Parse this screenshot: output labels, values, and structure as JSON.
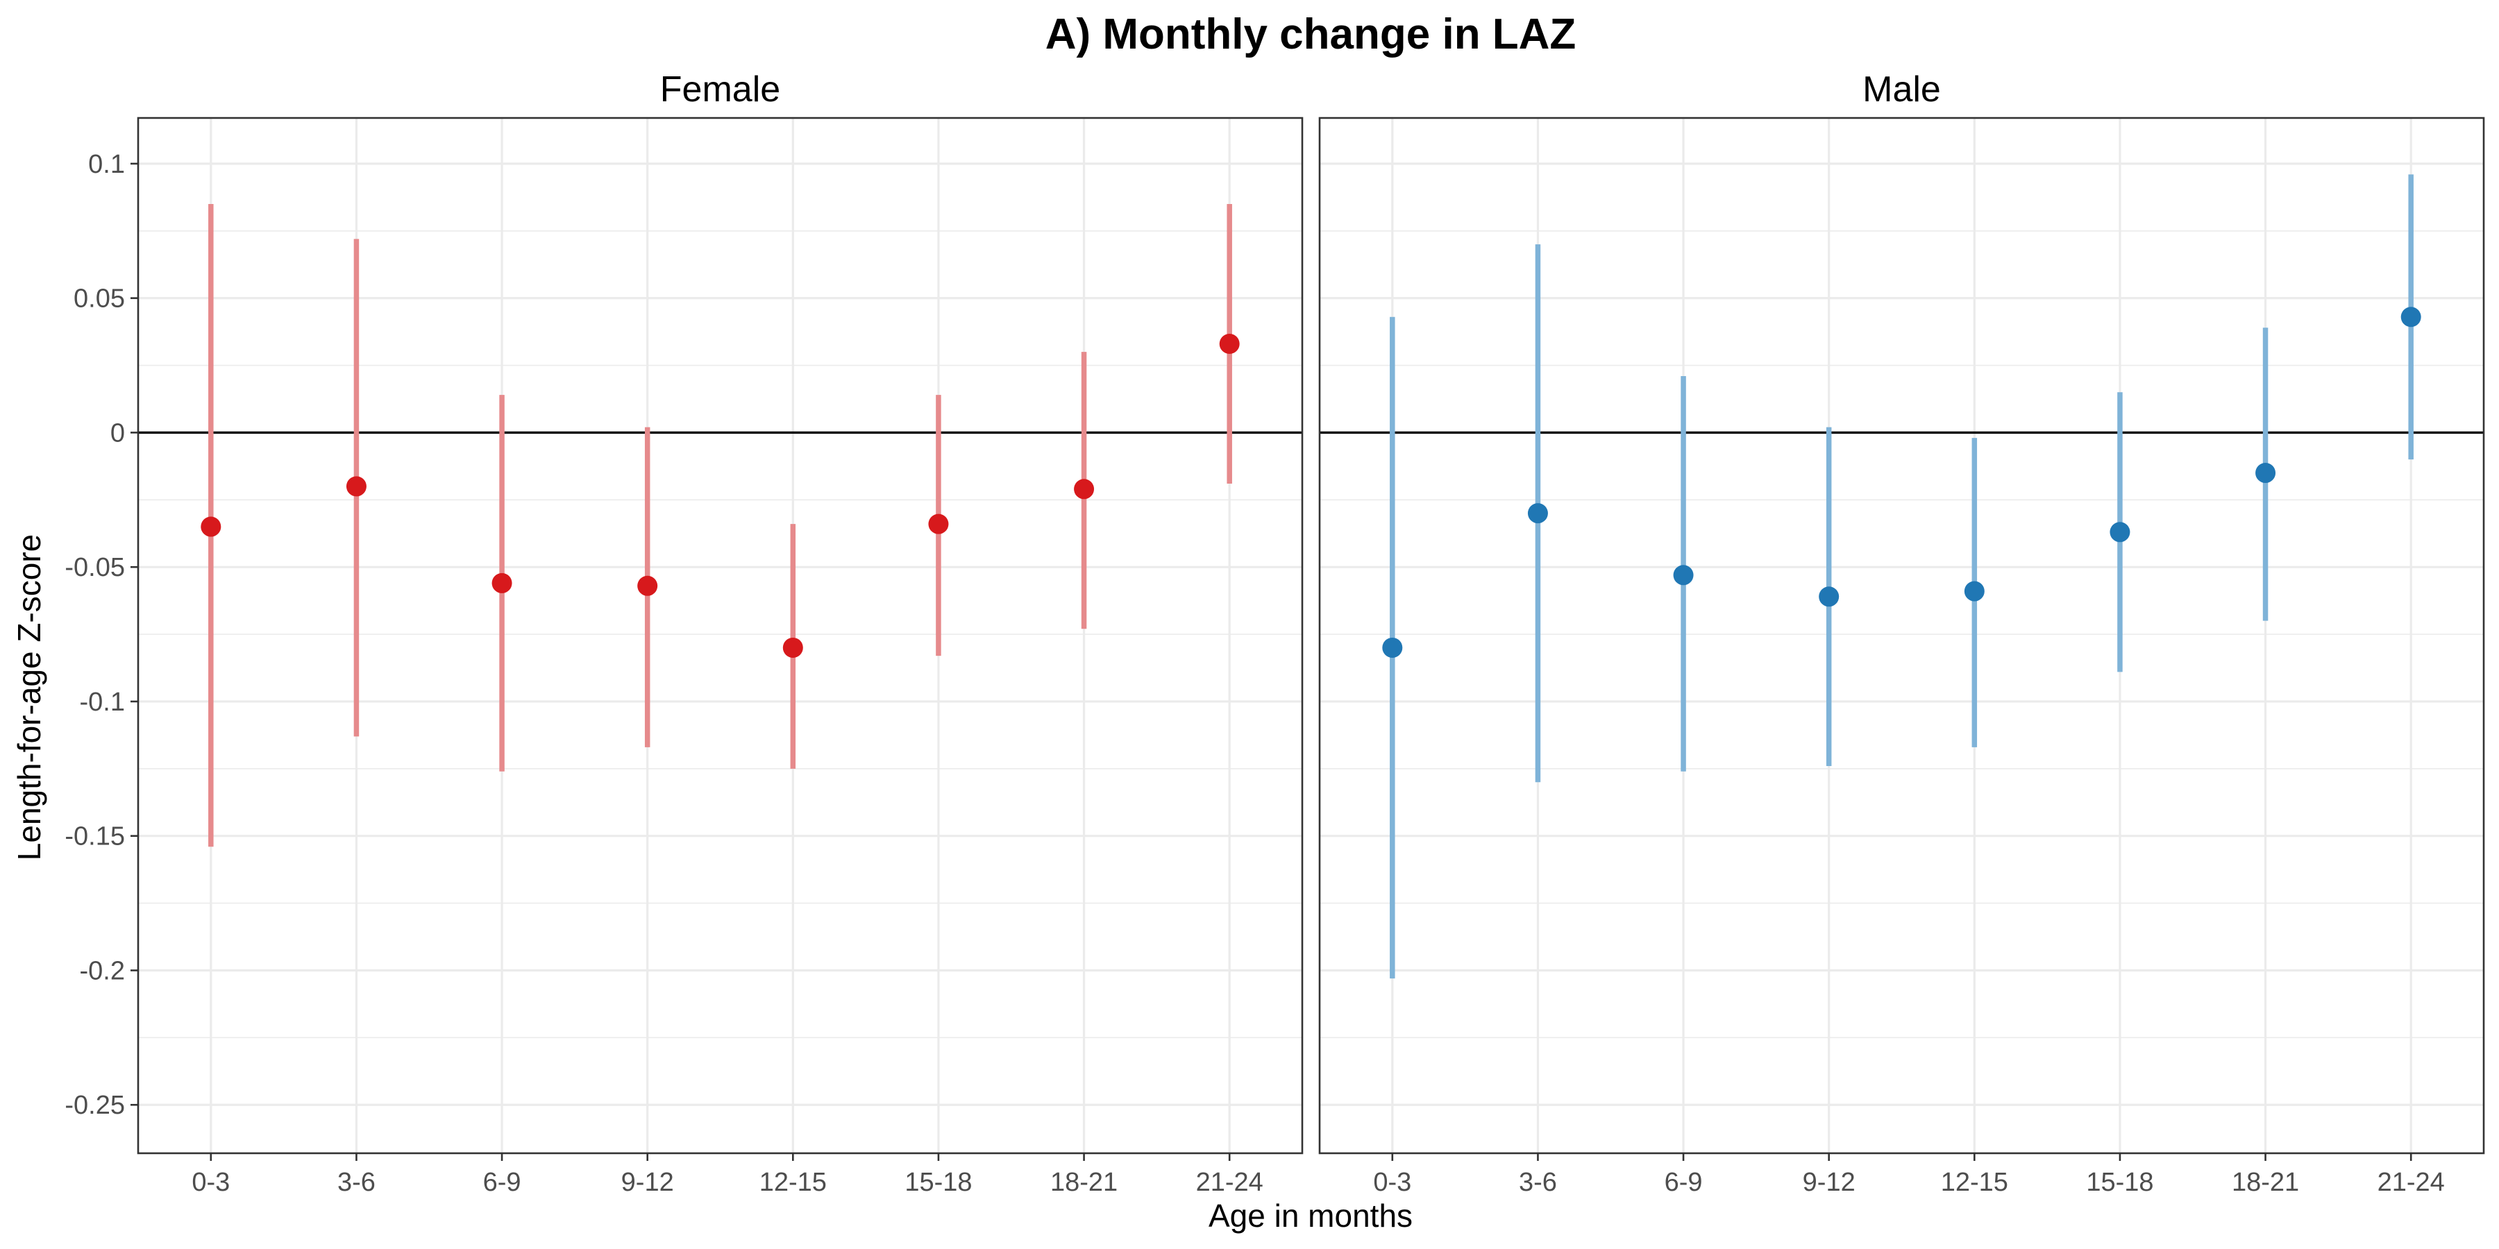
{
  "chart_data": {
    "type": "scatter",
    "title": "A) Monthly change in LAZ",
    "xlabel": "Age in months",
    "ylabel": "Length-for-age Z-score",
    "categories": [
      "0-3",
      "3-6",
      "6-9",
      "9-12",
      "12-15",
      "15-18",
      "18-21",
      "21-24"
    ],
    "ylim": [
      -0.268,
      0.117
    ],
    "yticks": [
      0.1,
      0.05,
      0,
      -0.05,
      -0.1,
      -0.15,
      -0.2,
      -0.25
    ],
    "ytick_labels": [
      "0.1",
      "0.05",
      "0",
      "-0.05",
      "-0.1",
      "-0.15",
      "-0.2",
      "-0.25"
    ],
    "reference_line": 0,
    "grid": true,
    "legend": "none",
    "panels": [
      {
        "name": "Female",
        "color": "#d7191c",
        "ci_color": "#e68a8c",
        "estimate": [
          -0.035,
          -0.02,
          -0.056,
          -0.057,
          -0.08,
          -0.034,
          -0.021,
          0.033
        ],
        "lower": [
          -0.154,
          -0.113,
          -0.126,
          -0.117,
          -0.125,
          -0.083,
          -0.073,
          -0.019
        ],
        "upper": [
          0.085,
          0.072,
          0.014,
          0.002,
          -0.034,
          0.014,
          0.03,
          0.085
        ]
      },
      {
        "name": "Male",
        "color": "#2077b4",
        "ci_color": "#7fb3d8",
        "estimate": [
          -0.08,
          -0.03,
          -0.053,
          -0.061,
          -0.059,
          -0.037,
          -0.015,
          0.043
        ],
        "lower": [
          -0.203,
          -0.13,
          -0.126,
          -0.124,
          -0.117,
          -0.089,
          -0.07,
          -0.01
        ],
        "upper": [
          0.043,
          0.07,
          0.021,
          0.002,
          -0.002,
          0.015,
          0.039,
          0.096
        ]
      }
    ]
  }
}
